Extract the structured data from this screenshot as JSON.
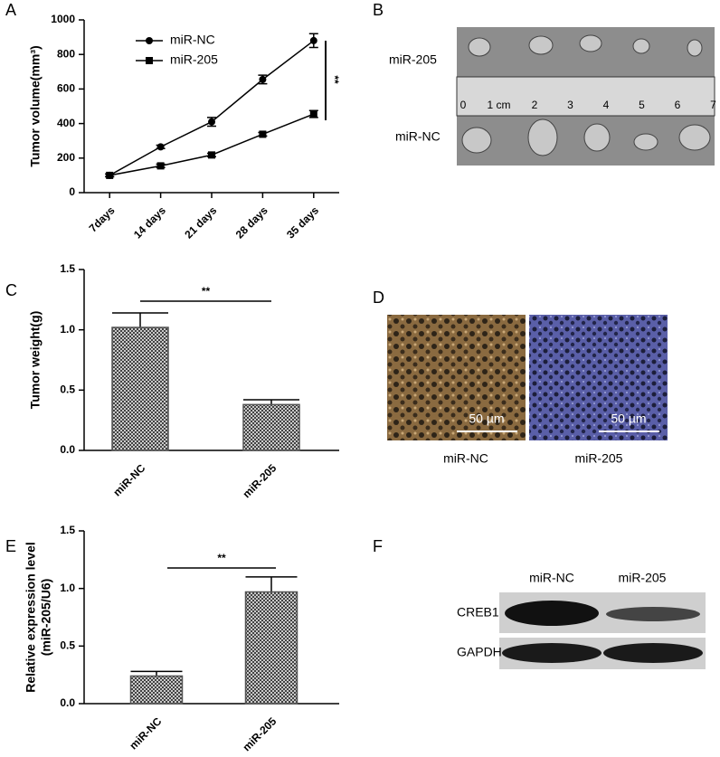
{
  "panels": [
    "A",
    "B",
    "C",
    "D",
    "E",
    "F"
  ],
  "images": {
    "B": {
      "rows": [
        "miR-205",
        "miR-NC"
      ],
      "ruler": [
        "0",
        "1 cm",
        "2",
        "3",
        "4",
        "5",
        "6",
        "7"
      ]
    },
    "D": {
      "scale_bars": [
        "50 µm",
        "50 µm"
      ],
      "captions": [
        "miR-NC",
        "miR-205"
      ]
    },
    "F": {
      "columns": [
        "miR-NC",
        "miR-205"
      ],
      "rows": [
        "CREB1",
        "GAPDH"
      ]
    }
  },
  "chart_data": [
    {
      "type": "line",
      "y_label": "Tumor volume(mm³)",
      "categories": [
        "7days",
        "14 days",
        "21 days",
        "28 days",
        "35 days"
      ],
      "series": [
        {
          "name": "miR-NC",
          "color": "#000000",
          "marker": "circle",
          "values": [
            100,
            265,
            410,
            655,
            880
          ],
          "errors": [
            8,
            10,
            25,
            25,
            40
          ]
        },
        {
          "name": "miR-205",
          "color": "#000000",
          "marker": "square",
          "values": [
            100,
            155,
            218,
            338,
            455
          ],
          "errors": [
            8,
            10,
            10,
            10,
            20
          ]
        }
      ],
      "ylim": [
        0,
        1000
      ],
      "yticks": [
        0,
        200,
        400,
        600,
        800,
        1000
      ],
      "annotation": "**"
    },
    {
      "type": "bar",
      "y_label": "Tumor weight(g)",
      "categories": [
        "miR-NC",
        "miR-205"
      ],
      "values": [
        1.02,
        0.38
      ],
      "errors": [
        0.12,
        0.04
      ],
      "color": "#555555",
      "ylim": [
        0,
        1.5
      ],
      "yticks": [
        {
          "value": 0,
          "label": "0.0"
        },
        0.5,
        {
          "value": 1,
          "label": "1.0"
        },
        1.5
      ],
      "annotation": "**"
    },
    {
      "type": "bar",
      "y_label": [
        "Relative expression level",
        "(miR-205/U6)"
      ],
      "categories": [
        "miR-NC",
        "miR-205"
      ],
      "values": [
        0.24,
        0.97
      ],
      "errors": [
        0.04,
        0.13
      ],
      "color": "#555555",
      "ylim": [
        0,
        1.5
      ],
      "yticks": [
        {
          "value": 0,
          "label": "0.0"
        },
        0.5,
        {
          "value": 1,
          "label": "1.0"
        },
        1.5
      ],
      "annotation": "**"
    }
  ]
}
